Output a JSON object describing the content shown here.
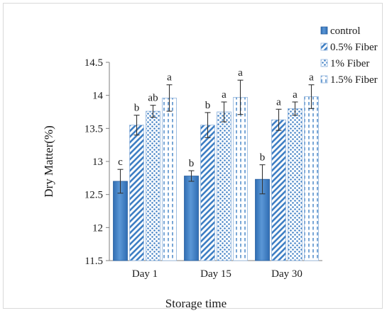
{
  "chart_data": {
    "type": "bar",
    "title": "",
    "xlabel": "Storage time",
    "ylabel": "Dry Matter(%)",
    "ylim": [
      11.5,
      14.5
    ],
    "yticks": [
      "11.5",
      "12",
      "12.5",
      "13",
      "13.5",
      "14",
      "14.5"
    ],
    "grid": false,
    "legend_position": "top-right",
    "categories": [
      "Day 1",
      "Day 15",
      "Day 30"
    ],
    "series": [
      {
        "name": "control",
        "pattern": "solid",
        "color": "#3f7fc4",
        "values": [
          12.7,
          12.78,
          12.73
        ],
        "errors": [
          0.18,
          0.08,
          0.22
        ],
        "letters": [
          "c",
          "b",
          "b"
        ]
      },
      {
        "name": "0.5% Fiber",
        "pattern": "diagonal-stripes",
        "color": "#3f7fc4",
        "values": [
          13.55,
          13.55,
          13.63
        ],
        "errors": [
          0.15,
          0.19,
          0.16
        ],
        "letters": [
          "b",
          "b",
          "a"
        ]
      },
      {
        "name": "1% Fiber",
        "pattern": "dots",
        "color": "#3f7fc4",
        "values": [
          13.76,
          13.75,
          13.8
        ],
        "errors": [
          0.09,
          0.15,
          0.1
        ],
        "letters": [
          "ab",
          "a",
          "a"
        ]
      },
      {
        "name": "1.5% Fiber",
        "pattern": "dashed-vertical",
        "color": "#3f7fc4",
        "values": [
          13.96,
          13.97,
          13.98
        ],
        "errors": [
          0.2,
          0.26,
          0.18
        ],
        "letters": [
          "a",
          "a",
          "a"
        ]
      }
    ]
  }
}
